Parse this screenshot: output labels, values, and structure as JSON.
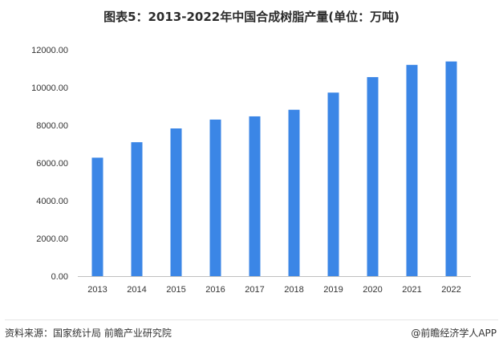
{
  "header": {
    "title": "图表5：2013-2022年中国合成树脂产量(单位：万吨)"
  },
  "footer": {
    "source": "资料来源：国家统计局 前瞻产业研究院",
    "brand": "@前瞻经济学人APP"
  },
  "colors": {
    "bar": "#3b86e6",
    "axis": "#bfbfbf"
  },
  "chart_data": {
    "type": "bar",
    "title": "图表5：2013-2022年中国合成树脂产量(单位：万吨)",
    "categories": [
      "2013",
      "2014",
      "2015",
      "2016",
      "2017",
      "2018",
      "2019",
      "2020",
      "2021",
      "2022"
    ],
    "series": [
      {
        "values": [
          6280,
          7100,
          7830,
          8300,
          8470,
          8820,
          9730,
          10550,
          11200,
          11380
        ]
      }
    ],
    "xlabel": "",
    "ylabel": "",
    "ylim": [
      0,
      12000
    ],
    "yticks": [
      "0.00",
      "2000.00",
      "4000.00",
      "6000.00",
      "8000.00",
      "10000.00",
      "12000.00"
    ],
    "grid": false,
    "legend": "none"
  }
}
